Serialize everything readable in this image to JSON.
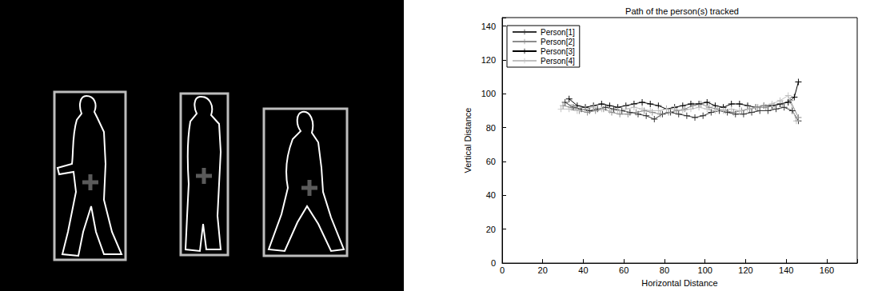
{
  "chart_data": {
    "type": "line",
    "title": "Path of the person(s) tracked",
    "x_label": "Horizontal Distance",
    "y_label": "Vertical Distance",
    "xlim": [
      0,
      175
    ],
    "ylim": [
      0,
      145
    ],
    "xticks": [
      0,
      20,
      40,
      60,
      80,
      100,
      120,
      140,
      160
    ],
    "yticks": [
      0,
      20,
      40,
      60,
      80,
      100,
      120,
      140
    ],
    "grid": false,
    "legend": "northwest",
    "marker": "plus",
    "series": [
      {
        "name": "Person[1]",
        "color": "#333333",
        "x": [
          31,
          35,
          39,
          43,
          47,
          51,
          55,
          59,
          63,
          67,
          71,
          75,
          79,
          83,
          87,
          91,
          95,
          99,
          103,
          107,
          111,
          115,
          119,
          123,
          127,
          131,
          135,
          139,
          143,
          146
        ],
        "values": [
          95,
          92,
          91,
          90,
          91,
          92,
          91,
          90,
          89,
          88,
          87,
          85,
          88,
          89,
          88,
          87,
          86,
          87,
          89,
          90,
          89,
          88,
          88,
          89,
          90,
          90,
          91,
          92,
          90,
          84
        ]
      },
      {
        "name": "Person[2]",
        "color": "#8c8c8c",
        "x": [
          30,
          34,
          38,
          42,
          46,
          50,
          54,
          58,
          62,
          66,
          70,
          74,
          78,
          82,
          86,
          90,
          94,
          98,
          102,
          106,
          110,
          114,
          118,
          122,
          126,
          130,
          134,
          138,
          142,
          146
        ],
        "values": [
          93,
          92,
          90,
          89,
          90,
          91,
          89,
          88,
          88,
          89,
          90,
          89,
          88,
          89,
          90,
          91,
          93,
          94,
          92,
          91,
          90,
          89,
          90,
          91,
          92,
          92,
          93,
          94,
          96,
          86
        ]
      },
      {
        "name": "Person[3]",
        "color": "#000000",
        "x": [
          33,
          37,
          41,
          45,
          49,
          53,
          57,
          61,
          65,
          69,
          73,
          77,
          81,
          85,
          89,
          93,
          97,
          101,
          105,
          109,
          113,
          117,
          121,
          125,
          129,
          133,
          137,
          141,
          144,
          146
        ],
        "values": [
          97,
          93,
          92,
          93,
          94,
          93,
          92,
          93,
          94,
          95,
          94,
          93,
          91,
          92,
          93,
          94,
          94,
          95,
          93,
          92,
          94,
          94,
          93,
          92,
          93,
          93,
          94,
          95,
          98,
          107
        ]
      },
      {
        "name": "Person[4]",
        "color": "#c0c0c0",
        "x": [
          29,
          33,
          37,
          41,
          45,
          49,
          53,
          57,
          61,
          65,
          69,
          73,
          77,
          81,
          85,
          89,
          93,
          97,
          101,
          105,
          109,
          113,
          117,
          121,
          125,
          129,
          133,
          137,
          141,
          145
        ],
        "values": [
          91,
          91,
          90,
          91,
          92,
          91,
          90,
          90,
          91,
          92,
          91,
          90,
          90,
          91,
          91,
          90,
          91,
          92,
          91,
          90,
          90,
          91,
          90,
          91,
          92,
          93,
          94,
          96,
          99,
          84
        ]
      }
    ]
  }
}
